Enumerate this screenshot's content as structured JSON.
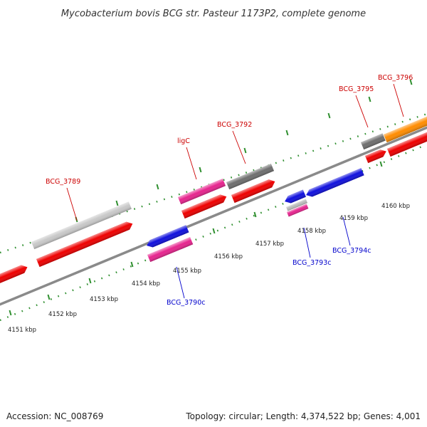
{
  "title": "Mycobacterium bovis BCG str. Pasteur 1173P2, complete genome",
  "footer": {
    "accession": "Accession: NC_008769",
    "summary": "Topology: circular; Length: 4,374,522 bp; Genes: 4,001"
  },
  "colors": {
    "backbone": "#8a8a8a",
    "ruler": "#2f8f2f",
    "label_forward": "#cc0000",
    "label_reverse": "#0000cc"
  },
  "scale_labels": [
    "4151 kbp",
    "4152 kbp",
    "4153 kbp",
    "4154 kbp",
    "4155 kbp",
    "4156 kbp",
    "4157 kbp",
    "4158 kbp",
    "4159 kbp",
    "4160 kbp"
  ],
  "gene_labels": {
    "forward": [
      "BCG_3789",
      "ligC",
      "BCG_3792",
      "BCG_3795",
      "BCG_3796"
    ],
    "reverse": [
      "BCG_3790c",
      "BCG_3793c",
      "BCG_3794c"
    ]
  },
  "features": [
    {
      "label": "BCG_3789",
      "strand": "forward",
      "track": "gene",
      "color": "#c8c8c8"
    },
    {
      "label": "BCG_3789",
      "strand": "forward",
      "track": "cds",
      "color": "#ee0000"
    },
    {
      "label": "",
      "strand": "forward",
      "track": "cds",
      "color": "#ee0000"
    },
    {
      "label": "BCG_3790c",
      "strand": "reverse",
      "track": "cds",
      "color": "#1010dd"
    },
    {
      "label": "BCG_3790c",
      "strand": "reverse",
      "track": "gene",
      "color": "#e6248e"
    },
    {
      "label": "ligC",
      "strand": "forward",
      "track": "gene",
      "color": "#e6248e"
    },
    {
      "label": "ligC",
      "strand": "forward",
      "track": "cds",
      "color": "#ee0000"
    },
    {
      "label": "BCG_3792",
      "strand": "forward",
      "track": "gene",
      "color": "#6e6e6e"
    },
    {
      "label": "BCG_3792",
      "strand": "forward",
      "track": "cds",
      "color": "#ee0000"
    },
    {
      "label": "BCG_3793c",
      "strand": "reverse",
      "track": "cds",
      "color": "#1010dd"
    },
    {
      "label": "BCG_3793c",
      "strand": "reverse",
      "track": "gene",
      "color": "#bbbbbb"
    },
    {
      "label": "BCG_3793c",
      "strand": "reverse",
      "track": "gene",
      "color": "#e6248e"
    },
    {
      "label": "BCG_3794c",
      "strand": "reverse",
      "track": "cds",
      "color": "#1010dd"
    },
    {
      "label": "BCG_3795",
      "strand": "forward",
      "track": "gene",
      "color": "#6e6e6e"
    },
    {
      "label": "BCG_3795",
      "strand": "forward",
      "track": "cds",
      "color": "#ee0000"
    },
    {
      "label": "BCG_3796",
      "strand": "forward",
      "track": "gene",
      "color": "#ff8c00"
    },
    {
      "label": "BCG_3796",
      "strand": "forward",
      "track": "cds",
      "color": "#ee0000"
    }
  ]
}
